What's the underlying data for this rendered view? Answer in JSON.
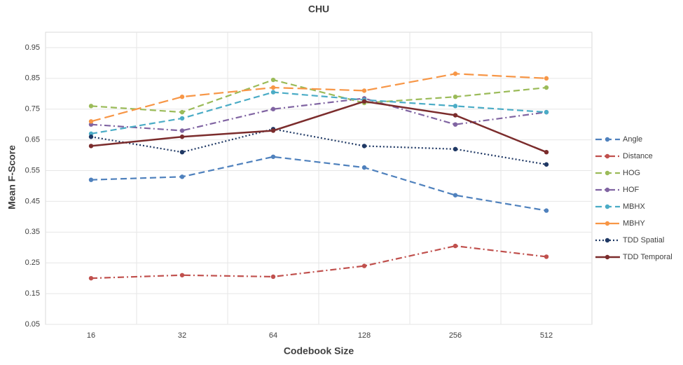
{
  "chart_data": {
    "type": "line",
    "title": "CHU",
    "x_label": "Codebook Size",
    "y_label": "Mean F-Score",
    "categories": [
      "16",
      "32",
      "64",
      "128",
      "256",
      "512"
    ],
    "ylim": [
      0.05,
      1.0
    ],
    "yticks": [
      0.05,
      0.15,
      0.25,
      0.35,
      0.45,
      0.55,
      0.65,
      0.75,
      0.85,
      0.95
    ],
    "grid": true,
    "legend": "right",
    "series": [
      {
        "name": "Angle",
        "color": "#4f81bd",
        "style": "dashed",
        "values": [
          0.52,
          0.53,
          0.595,
          0.56,
          0.47,
          0.42
        ]
      },
      {
        "name": "Distance",
        "color": "#c0504d",
        "style": "dashdot",
        "values": [
          0.2,
          0.21,
          0.205,
          0.24,
          0.305,
          0.27
        ]
      },
      {
        "name": "HOG",
        "color": "#9bbb59",
        "style": "dashed",
        "values": [
          0.76,
          0.74,
          0.845,
          0.77,
          0.79,
          0.82
        ]
      },
      {
        "name": "HOF",
        "color": "#8064a2",
        "style": "dashdot",
        "values": [
          0.7,
          0.68,
          0.75,
          0.785,
          0.7,
          0.74
        ]
      },
      {
        "name": "MBHX",
        "color": "#4bacc6",
        "style": "dashed",
        "values": [
          0.67,
          0.72,
          0.805,
          0.78,
          0.76,
          0.74
        ]
      },
      {
        "name": "MBHY",
        "color": "#f79646",
        "style": "longdash",
        "values": [
          0.71,
          0.79,
          0.82,
          0.81,
          0.865,
          0.85
        ]
      },
      {
        "name": "TDD Spatial",
        "color": "#1f3864",
        "style": "dotted",
        "values": [
          0.66,
          0.61,
          0.685,
          0.63,
          0.62,
          0.57
        ]
      },
      {
        "name": "TDD Temporal",
        "color": "#7b2c2c",
        "style": "solid",
        "values": [
          0.63,
          0.66,
          0.68,
          0.775,
          0.73,
          0.61
        ]
      }
    ]
  }
}
